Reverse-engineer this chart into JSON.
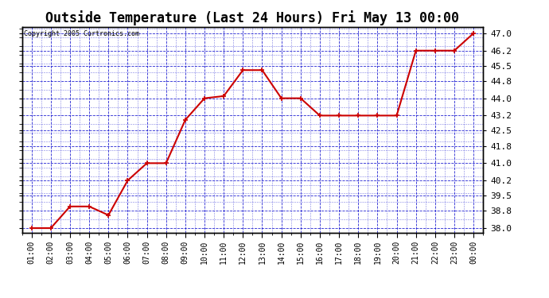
{
  "title": "Outside Temperature (Last 24 Hours) Fri May 13 00:00",
  "copyright": "Copyright 2005 Curtronics.com",
  "x_labels": [
    "01:00",
    "02:00",
    "03:00",
    "04:00",
    "05:00",
    "06:00",
    "07:00",
    "08:00",
    "09:00",
    "10:00",
    "11:00",
    "12:00",
    "13:00",
    "14:00",
    "15:00",
    "16:00",
    "17:00",
    "18:00",
    "19:00",
    "20:00",
    "21:00",
    "22:00",
    "23:00",
    "00:00"
  ],
  "y_values": [
    38.0,
    38.0,
    39.0,
    39.0,
    38.6,
    40.2,
    41.0,
    41.0,
    43.0,
    44.0,
    44.1,
    45.3,
    45.3,
    44.0,
    44.0,
    43.2,
    43.2,
    43.2,
    43.2,
    43.2,
    46.2,
    46.2,
    46.2,
    47.0
  ],
  "line_color": "#cc0000",
  "marker": "+",
  "marker_size": 5,
  "marker_linewidth": 1.2,
  "background_color": "#ffffff",
  "plot_bg_color": "#ffffff",
  "grid_color": "#0000cc",
  "title_fontsize": 12,
  "ylim": [
    37.8,
    47.3
  ],
  "yticks": [
    38.0,
    38.8,
    39.5,
    40.2,
    41.0,
    41.8,
    42.5,
    43.2,
    44.0,
    44.8,
    45.5,
    46.2,
    47.0
  ]
}
